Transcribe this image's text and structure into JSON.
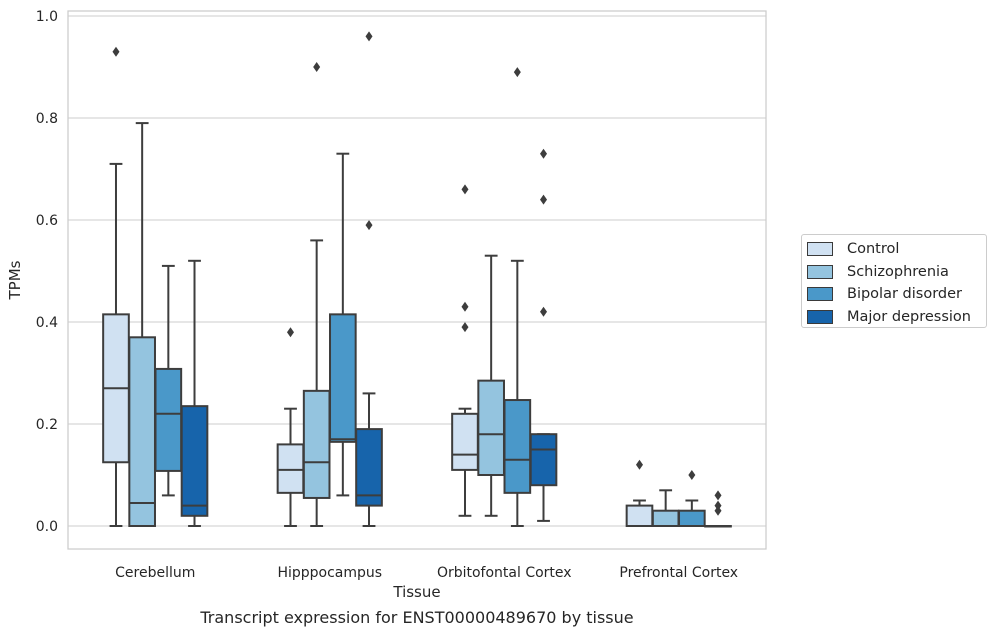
{
  "chart_data": {
    "type": "box",
    "title": "",
    "caption": "Transcript expression for ENST00000489670 by tissue",
    "xlabel": "Tissue",
    "ylabel": "TPMs",
    "ylim": [
      -0.045,
      1.015
    ],
    "yticks": [
      "0.0",
      "0.2",
      "0.4",
      "0.6",
      "0.8",
      "1.0"
    ],
    "grid": "horizontal",
    "legend_position": "right",
    "categories": [
      "Cerebellum",
      "Hipppocampus",
      "Orbitofontal Cortex",
      "Prefrontal Cortex"
    ],
    "series": [
      {
        "name": "Control",
        "color": "#d0e1f2",
        "boxes": [
          {
            "min": 0.0,
            "q1": 0.125,
            "median": 0.27,
            "q3": 0.415,
            "max": 0.71,
            "outliers": [
              0.93
            ]
          },
          {
            "min": 0.0,
            "q1": 0.065,
            "median": 0.11,
            "q3": 0.16,
            "max": 0.23,
            "outliers": [
              0.38
            ]
          },
          {
            "min": 0.02,
            "q1": 0.11,
            "median": 0.14,
            "q3": 0.22,
            "max": 0.23,
            "outliers": [
              0.39,
              0.43,
              0.66
            ]
          },
          {
            "min": 0.0,
            "q1": 0.0,
            "median": 0.0,
            "q3": 0.04,
            "max": 0.05,
            "outliers": [
              0.12
            ]
          }
        ]
      },
      {
        "name": "Schizophrenia",
        "color": "#94c4df",
        "boxes": [
          {
            "min": 0.0,
            "q1": 0.0,
            "median": 0.045,
            "q3": 0.37,
            "max": 0.79,
            "outliers": []
          },
          {
            "min": 0.0,
            "q1": 0.055,
            "median": 0.125,
            "q3": 0.265,
            "max": 0.56,
            "outliers": [
              0.9
            ]
          },
          {
            "min": 0.02,
            "q1": 0.1,
            "median": 0.18,
            "q3": 0.285,
            "max": 0.53,
            "outliers": []
          },
          {
            "min": 0.0,
            "q1": 0.0,
            "median": 0.0,
            "q3": 0.03,
            "max": 0.07,
            "outliers": []
          }
        ]
      },
      {
        "name": "Bipolar disorder",
        "color": "#4a98c9",
        "boxes": [
          {
            "min": 0.06,
            "q1": 0.108,
            "median": 0.22,
            "q3": 0.308,
            "max": 0.51,
            "outliers": []
          },
          {
            "min": 0.06,
            "q1": 0.165,
            "median": 0.17,
            "q3": 0.415,
            "max": 0.73,
            "outliers": []
          },
          {
            "min": 0.0,
            "q1": 0.065,
            "median": 0.13,
            "q3": 0.247,
            "max": 0.52,
            "outliers": [
              0.89
            ]
          },
          {
            "min": 0.0,
            "q1": 0.0,
            "median": 0.0,
            "q3": 0.03,
            "max": 0.05,
            "outliers": [
              0.1
            ]
          }
        ]
      },
      {
        "name": "Major depression",
        "color": "#1764ab",
        "boxes": [
          {
            "min": 0.0,
            "q1": 0.02,
            "median": 0.04,
            "q3": 0.235,
            "max": 0.52,
            "outliers": []
          },
          {
            "min": 0.0,
            "q1": 0.04,
            "median": 0.06,
            "q3": 0.19,
            "max": 0.26,
            "outliers": [
              0.59,
              0.96
            ]
          },
          {
            "min": 0.01,
            "q1": 0.08,
            "median": 0.15,
            "q3": 0.18,
            "max": 0.18,
            "outliers": [
              0.42,
              0.64,
              0.73
            ]
          },
          {
            "min": 0.0,
            "q1": 0.0,
            "median": 0.0,
            "q3": 0.0,
            "max": 0.0,
            "outliers": [
              0.03,
              0.04,
              0.06
            ]
          }
        ]
      }
    ]
  }
}
